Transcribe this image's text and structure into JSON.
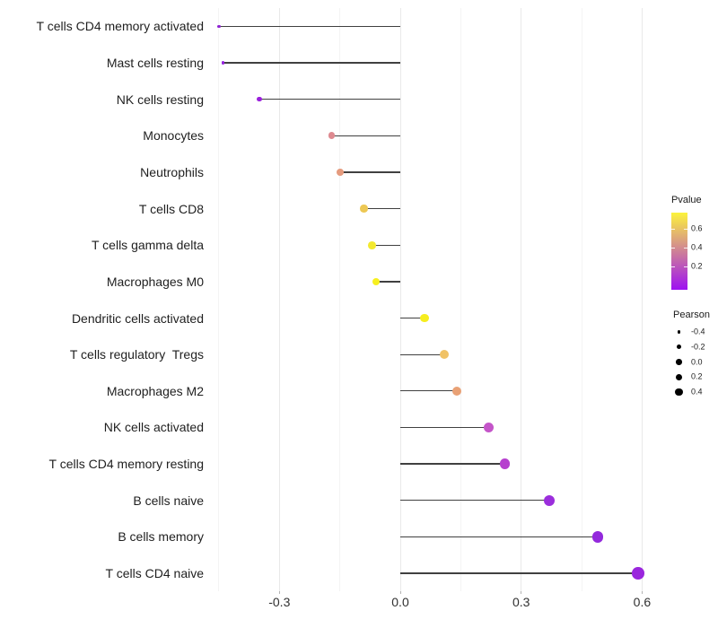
{
  "chart_data": {
    "type": "scatter",
    "variant": "lollipop",
    "title": "",
    "xlabel": "",
    "ylabel": "",
    "categories": [
      "T cells CD4 memory activated",
      "Mast cells resting",
      "NK cells resting",
      "Monocytes",
      "Neutrophils",
      "T cells CD8",
      "T cells gamma delta",
      "Macrophages M0",
      "Dendritic cells activated",
      "T cells regulatory  Tregs",
      "Macrophages M2",
      "NK cells activated",
      "T cells CD4 memory resting",
      "B cells naive",
      "B cells memory",
      "T cells CD4 naive"
    ],
    "series": [
      {
        "name": "Pearson",
        "values": [
          -0.45,
          -0.44,
          -0.35,
          -0.17,
          -0.15,
          -0.09,
          -0.07,
          -0.06,
          0.06,
          0.11,
          0.14,
          0.22,
          0.26,
          0.37,
          0.49,
          0.59
        ]
      },
      {
        "name": "Pvalue",
        "values": [
          0.04,
          0.03,
          0.05,
          0.42,
          0.44,
          0.55,
          0.68,
          0.76,
          0.72,
          0.5,
          0.4,
          0.22,
          0.15,
          0.06,
          0.02,
          0.005
        ]
      }
    ],
    "point_colors": [
      "#8E22D2",
      "#9420DE",
      "#9A1FDC",
      "#DE8A90",
      "#E59B7E",
      "#EDC854",
      "#F3E92F",
      "#F7F01F",
      "#F6ED1E",
      "#F0C266",
      "#E9A175",
      "#C455C9",
      "#B63FCE",
      "#9B2EDC",
      "#9329DC",
      "#9A26DD"
    ],
    "x_tick_labels": [
      "-0.3",
      "0.0",
      "0.3",
      "0.6"
    ],
    "x_tick_values": [
      -0.3,
      0.0,
      0.3,
      0.6
    ],
    "x_minor_gridlines": [
      -0.45,
      -0.15,
      0.15,
      0.45
    ],
    "xlim": [
      -0.47,
      0.64
    ],
    "baseline_x": 0.0,
    "grid": "vertical major + minor, light gray",
    "legend_position": "right"
  },
  "legends": {
    "pvalue": {
      "title": "Pvalue",
      "ticks": [
        {
          "label": "0.6",
          "pos": 0.215
        },
        {
          "label": "0.4",
          "pos": 0.459
        },
        {
          "label": "0.2",
          "pos": 0.703
        }
      ],
      "gradient_top": "#FCF33C",
      "gradient_mid": "#CE8197",
      "gradient_bottom": "#9E11F2"
    },
    "pearson": {
      "title": "Pearson",
      "entries": [
        {
          "label": "-0.4",
          "value": -0.4
        },
        {
          "label": "-0.2",
          "value": -0.2
        },
        {
          "label": "0.0",
          "value": 0.0
        },
        {
          "label": "0.2",
          "value": 0.2
        },
        {
          "label": "0.4",
          "value": 0.4
        }
      ]
    }
  },
  "colors": {
    "segment": "#404040",
    "axis_text": "#303030",
    "label_text": "#1f1f1f",
    "grid_major": "#e9e9e9",
    "grid_minor": "#f4f4f4",
    "background": "#ffffff"
  }
}
